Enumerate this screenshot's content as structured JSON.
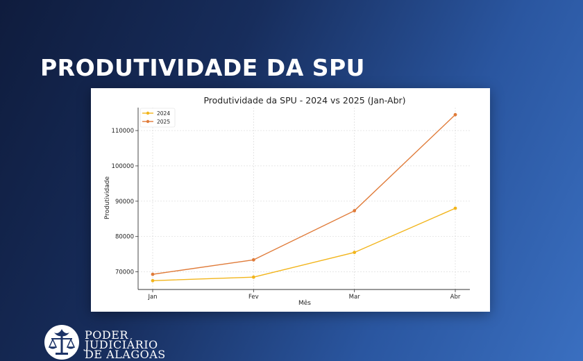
{
  "headline": "PRODUTIVIDADE DA SPU",
  "footer": {
    "org_line1": "PODER",
    "org_line2": "JUDICIÁRIO",
    "org_line3": "DE ALAGOAS"
  },
  "chart_data": {
    "type": "line",
    "title": "Produtividade da SPU - 2024 vs 2025 (Jan-Abr)",
    "xlabel": "Mês",
    "ylabel": "Produtividade",
    "categories": [
      "Jan",
      "Fev",
      "Mar",
      "Abr"
    ],
    "yticks": [
      70000,
      80000,
      90000,
      100000,
      110000
    ],
    "ylim": [
      65000,
      116500
    ],
    "grid": true,
    "legend_position": "top-left",
    "series": [
      {
        "name": "2024",
        "color": "#f2b51c",
        "values": [
          67500,
          68500,
          75500,
          88000
        ]
      },
      {
        "name": "2025",
        "color": "#e07b39",
        "values": [
          69300,
          73400,
          87300,
          114500
        ]
      }
    ]
  }
}
